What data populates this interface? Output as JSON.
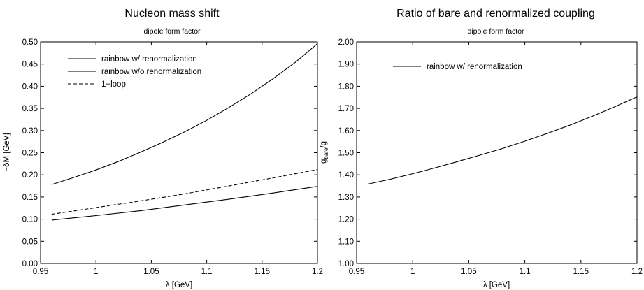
{
  "chart_data": [
    {
      "type": "line",
      "title": "Nucleon mass shift",
      "subtitle": "dipole form factor",
      "xlabel": "λ [GeV]",
      "ylabel": "−δM [GeV]",
      "xlim": [
        0.95,
        1.2
      ],
      "ylim": [
        0.0,
        0.5
      ],
      "x_ticks": [
        "0.95",
        "1",
        "1.05",
        "1.1",
        "1.15",
        "1.2"
      ],
      "y_ticks": [
        "0.00",
        "0.05",
        "0.10",
        "0.15",
        "0.20",
        "0.25",
        "0.30",
        "0.35",
        "0.40",
        "0.45",
        "0.50"
      ],
      "legend_position": "top-left",
      "series": [
        {
          "name": "rainbow w/ renormalization",
          "style": "solid",
          "x": [
            0.96,
            0.98,
            1.0,
            1.02,
            1.04,
            1.06,
            1.08,
            1.1,
            1.12,
            1.14,
            1.16,
            1.18,
            1.2
          ],
          "values": [
            0.178,
            0.194,
            0.211,
            0.23,
            0.251,
            0.273,
            0.297,
            0.323,
            0.352,
            0.383,
            0.417,
            0.454,
            0.496
          ]
        },
        {
          "name": "rainbow w/o renormalization",
          "style": "solid",
          "x": [
            0.96,
            1.0,
            1.04,
            1.08,
            1.12,
            1.16,
            1.2
          ],
          "values": [
            0.098,
            0.108,
            0.119,
            0.132,
            0.145,
            0.159,
            0.174
          ]
        },
        {
          "name": "1−loop",
          "style": "dashed",
          "x": [
            0.96,
            1.0,
            1.04,
            1.08,
            1.12,
            1.16,
            1.2
          ],
          "values": [
            0.111,
            0.126,
            0.141,
            0.157,
            0.175,
            0.193,
            0.212
          ]
        }
      ]
    },
    {
      "type": "line",
      "title": "Ratio of bare and renormalized coupling",
      "subtitle": "dipole form factor",
      "xlabel": "λ [GeV]",
      "ylabel_main": "g",
      "ylabel_sub": "bare",
      "ylabel_tail": "/g",
      "xlim": [
        0.95,
        1.2
      ],
      "ylim": [
        1.0,
        2.0
      ],
      "x_ticks": [
        "0.95",
        "1",
        "1.05",
        "1.1",
        "1.15",
        "1.2"
      ],
      "y_ticks": [
        "1.00",
        "1.10",
        "1.20",
        "1.30",
        "1.40",
        "1.50",
        "1.60",
        "1.70",
        "1.80",
        "1.90",
        "2.00"
      ],
      "legend_position": "top-left",
      "series": [
        {
          "name": "rainbow w/ renormalization",
          "style": "solid",
          "x": [
            0.96,
            0.98,
            1.0,
            1.02,
            1.04,
            1.06,
            1.08,
            1.1,
            1.12,
            1.14,
            1.16,
            1.18,
            1.2
          ],
          "values": [
            1.358,
            1.38,
            1.405,
            1.432,
            1.46,
            1.489,
            1.519,
            1.552,
            1.587,
            1.624,
            1.664,
            1.707,
            1.752
          ]
        }
      ]
    }
  ]
}
